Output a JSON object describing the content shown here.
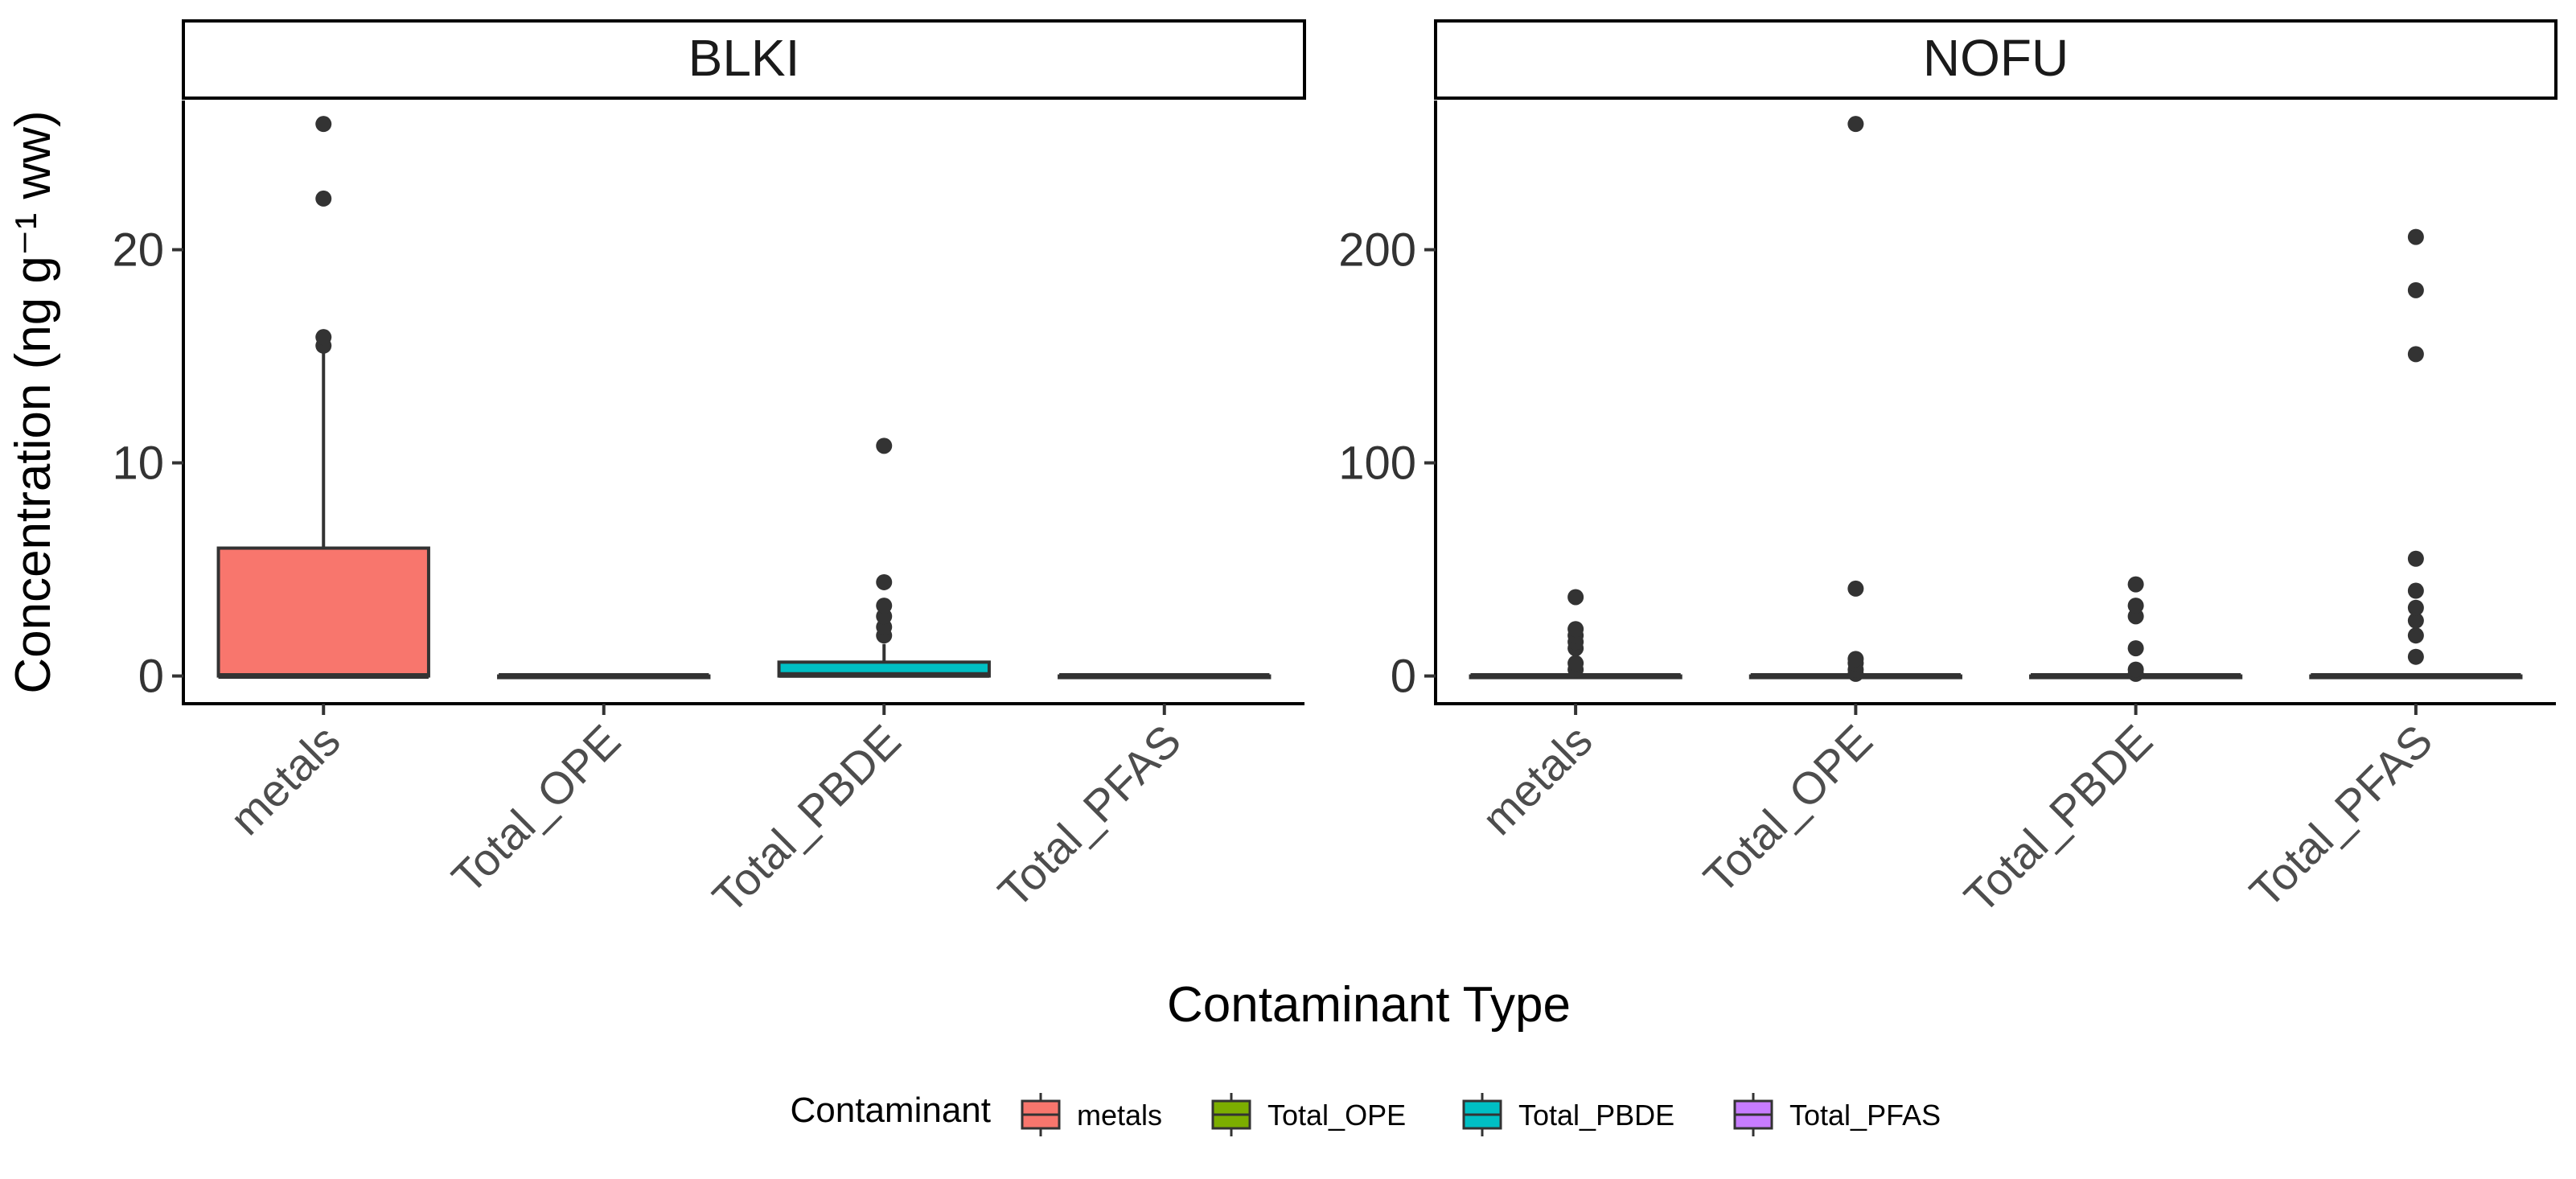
{
  "chart_data": {
    "type": "boxplot",
    "ylabel": "Concentration (ng g⁻¹ ww)",
    "xlabel": "Contaminant Type",
    "categories": [
      "metals",
      "Total_OPE",
      "Total_PBDE",
      "Total_PFAS"
    ],
    "legend": {
      "title": "Contaminant",
      "position": "bottom",
      "entries": [
        "metals",
        "Total_OPE",
        "Total_PBDE",
        "Total_PFAS"
      ]
    },
    "colors": {
      "metals": "#F8766D",
      "Total_OPE": "#7CAE00",
      "Total_PBDE": "#00BFC4",
      "Total_PFAS": "#C77CFF"
    },
    "panels": [
      {
        "name": "BLKI",
        "ylim": [
          -1.3,
          27
        ],
        "yticks": [
          0,
          10,
          20
        ],
        "boxes": [
          {
            "category": "metals",
            "q1": 0,
            "median": 0,
            "q3": 6.0,
            "whisker_low": 0,
            "whisker_high": 15.2,
            "outliers": [
              15.5,
              15.9,
              22.4,
              25.9
            ]
          },
          {
            "category": "Total_OPE",
            "q1": 0,
            "median": 0,
            "q3": 0,
            "whisker_low": 0,
            "whisker_high": 0,
            "outliers": []
          },
          {
            "category": "Total_PBDE",
            "q1": 0,
            "median": 0.05,
            "q3": 0.65,
            "whisker_low": 0,
            "whisker_high": 1.5,
            "outliers": [
              1.9,
              2.3,
              2.8,
              3.3,
              4.4,
              10.8
            ]
          },
          {
            "category": "Total_PFAS",
            "q1": 0,
            "median": 0,
            "q3": 0,
            "whisker_low": 0,
            "whisker_high": 0,
            "outliers": []
          }
        ]
      },
      {
        "name": "NOFU",
        "ylim": [
          -13,
          270
        ],
        "yticks": [
          0,
          100,
          200
        ],
        "boxes": [
          {
            "category": "metals",
            "q1": 0,
            "median": 0,
            "q3": 0,
            "whisker_low": 0,
            "whisker_high": 0,
            "outliers": [
              3,
              6,
              13,
              16,
              19,
              22,
              37
            ]
          },
          {
            "category": "Total_OPE",
            "q1": 0,
            "median": 0,
            "q3": 0,
            "whisker_low": 0,
            "whisker_high": 0,
            "outliers": [
              1,
              3,
              6,
              8,
              41,
              259
            ]
          },
          {
            "category": "Total_PBDE",
            "q1": 0,
            "median": 0,
            "q3": 0,
            "whisker_low": 0,
            "whisker_high": 0,
            "outliers": [
              1,
              3,
              13,
              28,
              33,
              43
            ]
          },
          {
            "category": "Total_PFAS",
            "q1": 0,
            "median": 0,
            "q3": 0,
            "whisker_low": 0,
            "whisker_high": 0,
            "outliers": [
              9,
              19,
              26,
              32,
              40,
              55,
              151,
              181,
              206
            ]
          }
        ]
      }
    ]
  }
}
